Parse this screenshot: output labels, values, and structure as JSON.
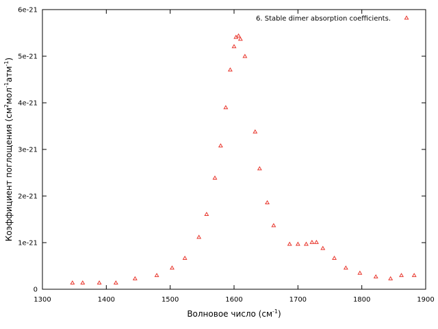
{
  "chart_data": {
    "type": "scatter",
    "xlim": [
      1300,
      1900
    ],
    "ylim": [
      0,
      6e-21
    ],
    "x_ticks": [
      1300,
      1400,
      1500,
      1600,
      1700,
      1800,
      1900
    ],
    "x_tick_labels": [
      "1300",
      "1400",
      "1500",
      "1600",
      "1700",
      "1800",
      "1900"
    ],
    "y_ticks": [
      0,
      1e-21,
      2e-21,
      3e-21,
      4e-21,
      5e-21,
      6e-21
    ],
    "y_tick_labels": [
      "0",
      "1e-21",
      "2e-21",
      "3e-21",
      "4e-21",
      "5e-21",
      "6e-21"
    ],
    "xlabel": {
      "prefix": "Волновое число (см",
      "sup": "-1",
      "suffix": ")"
    },
    "ylabel": {
      "p1": "Коэффициент поглощения (см",
      "s1": "2",
      "p2": "мол",
      "s2": "-1",
      "p3": "атм",
      "s3": "-1",
      "p4": ")"
    },
    "grid": false,
    "legend_position": "top-right",
    "marker_color": "#e8352b",
    "series": [
      {
        "name": "6. Stable dimer absorption coefficients.",
        "color": "#e8352b",
        "marker": "triangle",
        "x": [
          1347,
          1363,
          1389,
          1415,
          1445,
          1479,
          1503,
          1523,
          1545,
          1557,
          1570,
          1579,
          1587,
          1594,
          1600,
          1603,
          1607,
          1610,
          1617,
          1633,
          1640,
          1652,
          1662,
          1687,
          1700,
          1713,
          1722,
          1729,
          1739,
          1757,
          1775,
          1797,
          1822,
          1845,
          1862,
          1882
        ],
        "y": [
          1.4e-22,
          1.4e-22,
          1.4e-22,
          1.4e-22,
          2.3e-22,
          3e-22,
          4.6e-22,
          6.7e-22,
          1.12e-21,
          1.61e-21,
          2.39e-21,
          3.08e-21,
          3.9e-21,
          4.71e-21,
          5.21e-21,
          5.41e-21,
          5.44e-21,
          5.37e-21,
          5e-21,
          3.38e-21,
          2.59e-21,
          1.86e-21,
          1.37e-21,
          9.7e-22,
          9.7e-22,
          9.7e-22,
          1.01e-21,
          1.01e-21,
          8.8e-22,
          6.7e-22,
          4.6e-22,
          3.5e-22,
          2.7e-22,
          2.3e-22,
          3e-22,
          3e-22
        ]
      }
    ]
  }
}
